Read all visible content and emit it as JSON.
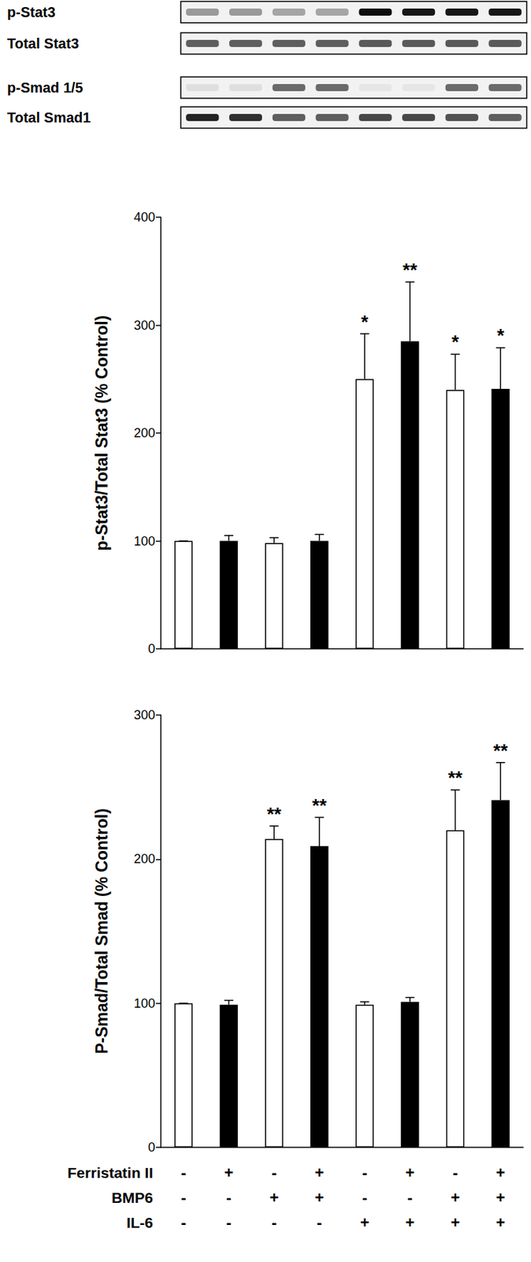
{
  "chart_data": [
    {
      "type": "bar",
      "y_label": "p-Stat3/Total Stat3 (% Control)",
      "categories": [
        null,
        null,
        null,
        null,
        null,
        null,
        null,
        null
      ],
      "values": [
        100,
        100,
        98,
        100,
        250,
        285,
        240,
        241
      ],
      "errors": [
        0,
        5,
        5,
        6,
        42,
        55,
        33,
        38
      ],
      "significance": [
        null,
        null,
        null,
        null,
        "*",
        "**",
        "*",
        "*"
      ],
      "colors": [
        "#ffffff",
        "#000000",
        "#ffffff",
        "#000000",
        "#ffffff",
        "#000000",
        "#ffffff",
        "#000000"
      ],
      "ylim": [
        0,
        400
      ],
      "yticks": [
        0,
        100,
        200,
        300,
        400
      ],
      "grid": false
    },
    {
      "type": "bar",
      "y_label": "P-Smad/Total Smad (% Control)",
      "categories": [
        null,
        null,
        null,
        null,
        null,
        null,
        null,
        null
      ],
      "values": [
        100,
        99,
        214,
        209,
        99,
        101,
        220,
        241
      ],
      "errors": [
        0,
        3,
        9,
        20,
        2,
        3,
        28,
        26
      ],
      "significance": [
        null,
        null,
        "**",
        "**",
        null,
        null,
        "**",
        "**"
      ],
      "colors": [
        "#ffffff",
        "#000000",
        "#ffffff",
        "#000000",
        "#ffffff",
        "#000000",
        "#ffffff",
        "#000000"
      ],
      "ylim": [
        0,
        300
      ],
      "yticks": [
        0,
        100,
        200,
        300
      ],
      "grid": false
    }
  ],
  "blots": [
    {
      "label": "p-Stat3",
      "band_intensity": [
        0.35,
        0.35,
        0.3,
        0.3,
        0.95,
        0.9,
        0.9,
        0.9
      ]
    },
    {
      "label": "Total Stat3",
      "band_intensity": [
        0.6,
        0.6,
        0.6,
        0.6,
        0.62,
        0.62,
        0.62,
        0.62
      ]
    },
    {
      "label": "p-Smad 1/5",
      "band_intensity": [
        0.05,
        0.05,
        0.55,
        0.55,
        0.02,
        0.02,
        0.55,
        0.55
      ]
    },
    {
      "label": "Total Smad1",
      "band_intensity": [
        0.85,
        0.8,
        0.6,
        0.6,
        0.7,
        0.7,
        0.65,
        0.6
      ]
    }
  ],
  "treatments": [
    {
      "label": "Ferristatin II",
      "values": [
        "-",
        "+",
        "-",
        "+",
        "-",
        "+",
        "-",
        "+"
      ]
    },
    {
      "label": "BMP6",
      "values": [
        "-",
        "-",
        "+",
        "+",
        "-",
        "-",
        "+",
        "+"
      ]
    },
    {
      "label": "IL-6",
      "values": [
        "-",
        "-",
        "-",
        "-",
        "+",
        "+",
        "+",
        "+"
      ]
    }
  ]
}
